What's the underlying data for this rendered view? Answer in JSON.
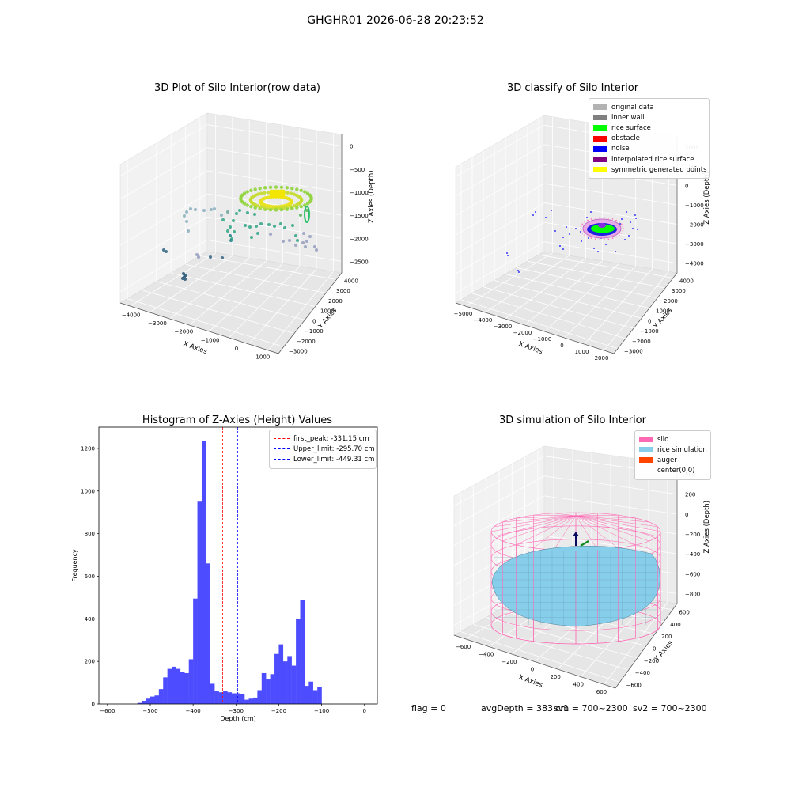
{
  "figure": {
    "title": "GHGHR01 2026-06-28 20:23:52"
  },
  "footer": {
    "flag": "flag = 0",
    "avg_depth": "avgDepth = 383 cm",
    "sv1": "sv1 = 700~2300",
    "sv2": "sv2 = 700~2300"
  },
  "colors": {
    "original": "#b3b3b3",
    "inner_wall": "#808080",
    "rice_surface": "#00ff00",
    "obstacle": "#ff0000",
    "noise": "#0000ff",
    "interpolated": "#800080",
    "symmetric": "#ffff00",
    "silo": "#ff69b4",
    "rice_sim": "#87ceeb",
    "auger": "#ff4500",
    "hist_bar": "#4d4dff"
  },
  "chart_data": [
    {
      "type": "scatter",
      "projection": "3d",
      "title": "3D Plot of Silo Interior(row data)",
      "xlabel": "X Axies",
      "ylabel": "Y Axies",
      "zlabel": "Z Axies (Depth)",
      "x_ticks": [
        "−4000",
        "−3000",
        "−2000",
        "−1000",
        "0",
        "1000"
      ],
      "y_ticks": [
        "−3000",
        "−2000",
        "−1000",
        "0",
        "1000",
        "2000",
        "3000",
        "4000"
      ],
      "z_ticks": [
        "0",
        "−500",
        "−1000",
        "−1500",
        "−2000",
        "−2500"
      ]
    },
    {
      "type": "scatter",
      "projection": "3d",
      "title": "3D classify of Silo Interior",
      "xlabel": "X Axies",
      "ylabel": "Y Axies",
      "zlabel": "Z Axies (Depth)",
      "x_ticks": [
        "−5000",
        "−4000",
        "−3000",
        "−2000",
        "−1000",
        "0",
        "1000",
        "2000"
      ],
      "y_ticks": [
        "−3000",
        "−2000",
        "−1000",
        "0",
        "1000",
        "2000",
        "3000",
        "4000"
      ],
      "z_ticks": [
        "2000",
        "1000",
        "0",
        "−1000",
        "−2000",
        "−3000",
        "−4000"
      ],
      "legend": [
        "original data",
        "inner wall",
        "rice surface",
        "obstacle",
        "noise",
        "interpolated rice surface",
        "symmetric generated points"
      ],
      "legend_position": "top-right"
    },
    {
      "type": "bar",
      "title": "Histogram of Z-Axies (Height) Values",
      "xlabel": "Depth (cm)",
      "ylabel": "Frequency",
      "xlim": [
        -620,
        30
      ],
      "ylim": [
        0,
        1300
      ],
      "x_ticks": [
        -600,
        -500,
        -400,
        -300,
        -200,
        -100,
        0
      ],
      "x_tick_labels": [
        "−600",
        "−500",
        "−400",
        "−300",
        "−200",
        "−100",
        "0"
      ],
      "y_ticks": [
        0,
        200,
        400,
        600,
        800,
        1000,
        1200
      ],
      "bin_start": -530,
      "bin_width": 10,
      "counts": [
        5,
        15,
        25,
        35,
        40,
        70,
        125,
        165,
        175,
        165,
        150,
        145,
        210,
        495,
        950,
        1235,
        660,
        95,
        60,
        55,
        60,
        55,
        50,
        50,
        45,
        20,
        25,
        30,
        65,
        145,
        115,
        140,
        235,
        280,
        200,
        225,
        180,
        400,
        490,
        85,
        105,
        65,
        80
      ],
      "vlines": [
        {
          "x": -331.15,
          "color": "#ff0000",
          "label": "first_peak: -331.15 cm"
        },
        {
          "x": -295.7,
          "color": "#0000ff",
          "label": "Upper_limit: -295.70 cm"
        },
        {
          "x": -449.31,
          "color": "#0000ff",
          "label": "Lower_limit: -449.31 cm"
        }
      ],
      "legend_position": "top-right"
    },
    {
      "type": "surface",
      "projection": "3d",
      "title": "3D simulation of Silo Interior",
      "xlabel": "X Axies",
      "ylabel": "Y Axies",
      "zlabel": "Z Axies (Depth)",
      "x_ticks": [
        "−600",
        "−400",
        "−200",
        "0",
        "200",
        "400",
        "600"
      ],
      "y_ticks": [
        "−600",
        "−400",
        "−200",
        "0",
        "200",
        "400",
        "600"
      ],
      "z_ticks": [
        "400",
        "200",
        "0",
        "−200",
        "−400",
        "−600",
        "−800"
      ],
      "legend": [
        "silo",
        "rice simulation",
        "auger",
        "center(0,0)"
      ],
      "legend_position": "top-right"
    }
  ]
}
